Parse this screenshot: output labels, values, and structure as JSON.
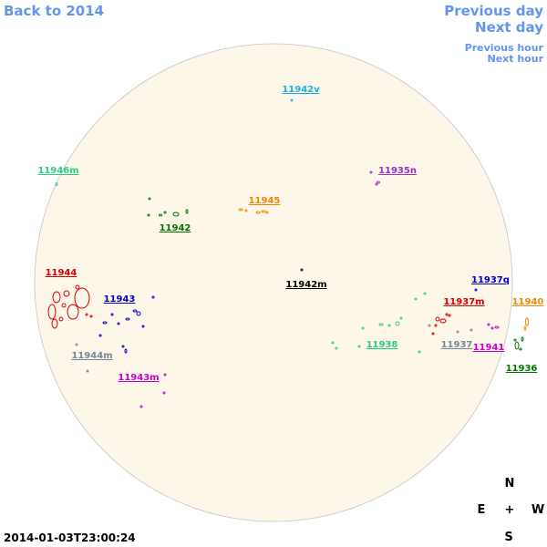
{
  "navigation": {
    "back": "Back to 2014",
    "previous_day": "Previous day",
    "next_day": "Next day",
    "previous_hour": "Previous hour",
    "next_hour": "Next hour"
  },
  "regions": [
    {
      "label": "11942v",
      "color": "#1ab0e8"
    },
    {
      "label": "11946m",
      "color": "#2ecc88"
    },
    {
      "label": "11935n",
      "color": "#9933cc"
    },
    {
      "label": "11945",
      "color": "#ee8800"
    },
    {
      "label": "11942",
      "color": "#007700"
    },
    {
      "label": "11944",
      "color": "#dd0000"
    },
    {
      "label": "11943",
      "color": "#0000cc"
    },
    {
      "label": "11942m",
      "color": "#000000"
    },
    {
      "label": "11937q",
      "color": "#0000cc"
    },
    {
      "label": "11937m",
      "color": "#dd0000"
    },
    {
      "label": "11940",
      "color": "#ee8800"
    },
    {
      "label": "11938",
      "color": "#2ecc88"
    },
    {
      "label": "11937",
      "color": "#778899"
    },
    {
      "label": "11941",
      "color": "#cc00cc"
    },
    {
      "label": "11936",
      "color": "#007700"
    },
    {
      "label": "11944m",
      "color": "#778899"
    },
    {
      "label": "11943m",
      "color": "#cc00cc"
    }
  ],
  "compass": {
    "north": "N",
    "east": "E",
    "center": "+",
    "west": "W",
    "south": "S"
  },
  "timestamp": "2014-01-03T23:00:24"
}
